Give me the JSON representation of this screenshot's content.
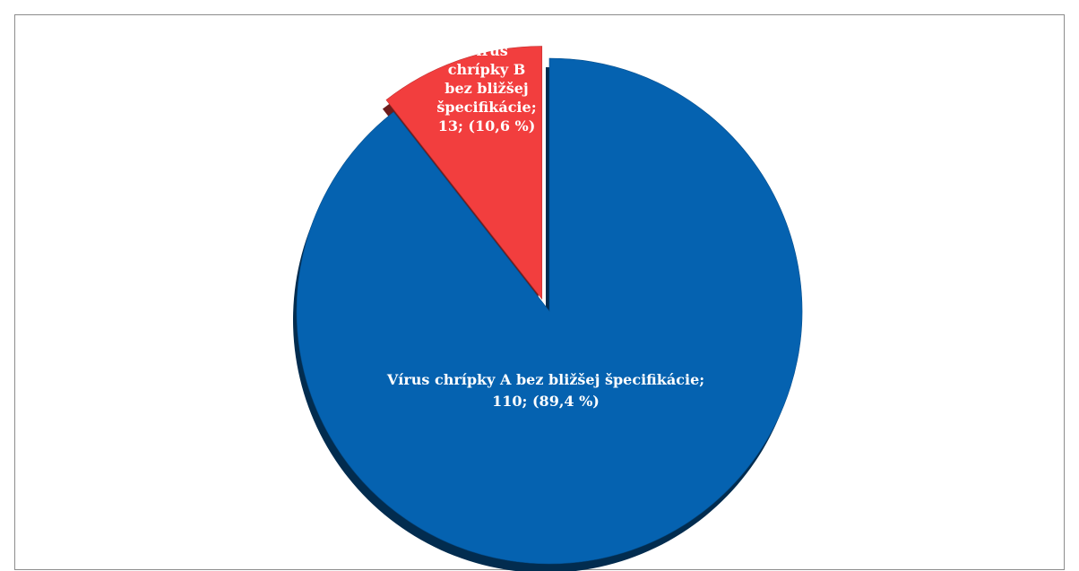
{
  "chart_data": {
    "type": "pie",
    "title": "",
    "legend": "none",
    "categories": [
      "Vírus chrípky A bez bližšej špecifikácie",
      "Vírus chrípky B bez bližšej špecifikácie"
    ],
    "values": [
      110,
      13
    ],
    "percentages": [
      "89,4 %",
      "10,6 %"
    ],
    "colors": [
      "#0562b0",
      "#f23e3e"
    ],
    "exploded": [
      false,
      true
    ],
    "labels": [
      {
        "lines": [
          "Vírus chrípky A bez bližšej špecifikácie;",
          "110; (89,4 %)"
        ]
      },
      {
        "lines": [
          "Vírus",
          "chrípky B",
          "bez bližšej",
          "špecifikácie;",
          "13; (10,6 %)"
        ]
      }
    ]
  }
}
